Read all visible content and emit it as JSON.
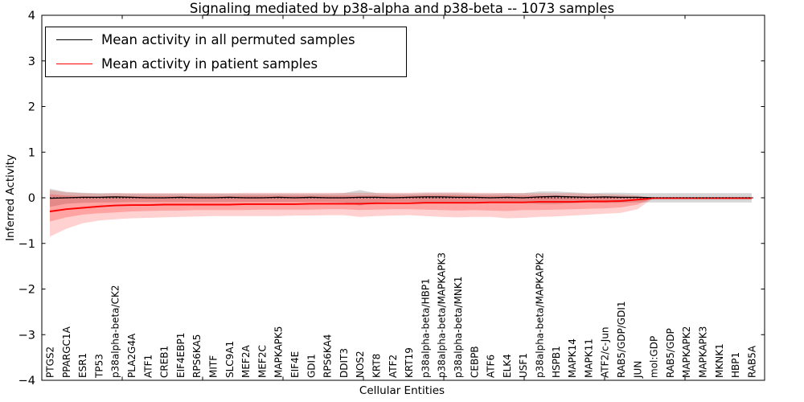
{
  "title": "Signaling mediated by p38-alpha and p38-beta -- 1073 samples",
  "axes": {
    "ylabel": "Inferred Activity",
    "xlabel": "Cellular Entities",
    "yticks": [
      4,
      3,
      2,
      1,
      0,
      -1,
      -2,
      -3,
      -4
    ],
    "ylim": [
      -4,
      4
    ]
  },
  "legend": {
    "entries": [
      {
        "label": "Mean activity in all permuted samples",
        "color": "#000000"
      },
      {
        "label": "Mean activity in patient samples",
        "color": "#ff0000"
      }
    ]
  },
  "chart_data": {
    "type": "line",
    "title": "Signaling mediated by p38-alpha and p38-beta -- 1073 samples",
    "xlabel": "Cellular Entities",
    "ylabel": "Inferred Activity",
    "ylim": [
      -4,
      4
    ],
    "grid": false,
    "legend_position": "upper left",
    "zero_reference_line": true,
    "categories": [
      "PTGS2",
      "PPARGC1A",
      "ESR1",
      "TP53",
      "p38alpha-beta/CK2",
      "PLA2G4A",
      "ATF1",
      "CREB1",
      "EIF4EBP1",
      "RPS6KA5",
      "MITF",
      "SLC9A1",
      "MEF2A",
      "MEF2C",
      "MAPKAPK5",
      "EIF4E",
      "GDI1",
      "RPS6KA4",
      "DDIT3",
      "NOS2",
      "KRT8",
      "ATF2",
      "KRT19",
      "p38alpha-beta/HBP1",
      "p38alpha-beta/MAPKAPK3",
      "p38alpha-beta/MNK1",
      "CEBPB",
      "ATF6",
      "ELK4",
      "USF1",
      "p38alpha-beta/MAPKAPK2",
      "HSPB1",
      "MAPK14",
      "MAPK11",
      "ATF2/c-Jun",
      "RAB5/GDP/GDI1",
      "JUN",
      "mol:GDP",
      "RAB5/GDP",
      "MAPKAPK2",
      "MAPKAPK3",
      "MKNK1",
      "HBP1",
      "RAB5A"
    ],
    "series": [
      {
        "name": "Mean activity in all permuted samples",
        "color": "#000000",
        "values": [
          -0.01,
          0.0,
          0.01,
          0.01,
          0.02,
          0.01,
          0.0,
          0.0,
          0.01,
          0.0,
          0.0,
          0.01,
          0.0,
          0.0,
          0.01,
          0.0,
          0.01,
          0.0,
          0.0,
          0.01,
          0.01,
          0.0,
          0.01,
          0.02,
          0.02,
          0.01,
          0.01,
          0.0,
          0.01,
          0.0,
          0.02,
          0.03,
          0.02,
          0.01,
          0.02,
          0.01,
          0.01,
          0.0,
          0.0,
          0.0,
          0.0,
          0.0,
          0.0,
          0.0
        ]
      },
      {
        "name": "Mean activity in patient samples",
        "color": "#ff0000",
        "values": [
          -0.3,
          -0.25,
          -0.22,
          -0.19,
          -0.17,
          -0.16,
          -0.16,
          -0.15,
          -0.15,
          -0.15,
          -0.15,
          -0.15,
          -0.14,
          -0.14,
          -0.14,
          -0.14,
          -0.13,
          -0.13,
          -0.13,
          -0.13,
          -0.12,
          -0.12,
          -0.12,
          -0.11,
          -0.11,
          -0.11,
          -0.11,
          -0.1,
          -0.1,
          -0.1,
          -0.09,
          -0.09,
          -0.09,
          -0.08,
          -0.08,
          -0.07,
          -0.04,
          -0.01,
          -0.01,
          -0.01,
          -0.01,
          -0.01,
          -0.01,
          -0.01
        ]
      }
    ],
    "bands": [
      {
        "name": "permuted-samples-band",
        "color": "#999999",
        "alpha": 0.4,
        "upper": [
          0.2,
          0.13,
          0.11,
          0.1,
          0.1,
          0.09,
          0.09,
          0.09,
          0.09,
          0.09,
          0.09,
          0.09,
          0.09,
          0.09,
          0.09,
          0.09,
          0.09,
          0.09,
          0.1,
          0.17,
          0.1,
          0.09,
          0.09,
          0.1,
          0.1,
          0.1,
          0.09,
          0.09,
          0.1,
          0.1,
          0.14,
          0.14,
          0.12,
          0.1,
          0.11,
          0.11,
          0.1,
          0.1,
          0.1,
          0.1,
          0.1,
          0.1,
          0.1,
          0.1
        ],
        "lower": [
          -0.2,
          -0.13,
          -0.11,
          -0.1,
          -0.1,
          -0.09,
          -0.09,
          -0.09,
          -0.09,
          -0.09,
          -0.09,
          -0.09,
          -0.09,
          -0.09,
          -0.09,
          -0.09,
          -0.09,
          -0.09,
          -0.1,
          -0.17,
          -0.1,
          -0.09,
          -0.09,
          -0.1,
          -0.1,
          -0.1,
          -0.09,
          -0.09,
          -0.1,
          -0.1,
          -0.14,
          -0.14,
          -0.12,
          -0.1,
          -0.11,
          -0.11,
          -0.1,
          -0.1,
          -0.1,
          -0.1,
          -0.1,
          -0.1,
          -0.1,
          -0.1
        ]
      },
      {
        "name": "patient-samples-band-outer",
        "color": "#ff0000",
        "alpha": 0.18,
        "upper": [
          0.17,
          0.12,
          0.1,
          0.09,
          0.1,
          0.1,
          0.1,
          0.1,
          0.1,
          0.1,
          0.1,
          0.1,
          0.11,
          0.11,
          0.11,
          0.11,
          0.11,
          0.11,
          0.11,
          0.11,
          0.11,
          0.11,
          0.11,
          0.12,
          0.12,
          0.12,
          0.11,
          0.11,
          0.1,
          0.1,
          0.1,
          0.1,
          0.1,
          0.09,
          0.08,
          0.07,
          0.05,
          0.0,
          0.0,
          0.0,
          0.0,
          0.0,
          0.0,
          0.0
        ],
        "lower": [
          -0.85,
          -0.68,
          -0.56,
          -0.5,
          -0.47,
          -0.45,
          -0.44,
          -0.43,
          -0.42,
          -0.41,
          -0.4,
          -0.4,
          -0.4,
          -0.4,
          -0.4,
          -0.39,
          -0.39,
          -0.38,
          -0.38,
          -0.42,
          -0.4,
          -0.39,
          -0.38,
          -0.4,
          -0.42,
          -0.43,
          -0.42,
          -0.42,
          -0.45,
          -0.44,
          -0.42,
          -0.41,
          -0.39,
          -0.37,
          -0.35,
          -0.33,
          -0.25,
          0.0,
          0.0,
          0.0,
          0.0,
          0.0,
          0.0,
          0.0
        ]
      },
      {
        "name": "patient-samples-band-inner",
        "color": "#ff0000",
        "alpha": 0.22,
        "upper": [
          0.08,
          0.05,
          0.04,
          0.03,
          0.04,
          0.04,
          0.04,
          0.04,
          0.04,
          0.04,
          0.04,
          0.04,
          0.05,
          0.05,
          0.05,
          0.05,
          0.05,
          0.05,
          0.05,
          0.05,
          0.05,
          0.05,
          0.05,
          0.06,
          0.06,
          0.06,
          0.05,
          0.05,
          0.05,
          0.05,
          0.05,
          0.05,
          0.04,
          0.04,
          0.03,
          0.03,
          0.02,
          0.0,
          0.0,
          0.0,
          0.0,
          0.0,
          0.0,
          0.0
        ],
        "lower": [
          -0.52,
          -0.43,
          -0.37,
          -0.34,
          -0.32,
          -0.3,
          -0.29,
          -0.28,
          -0.28,
          -0.27,
          -0.27,
          -0.27,
          -0.27,
          -0.26,
          -0.26,
          -0.26,
          -0.26,
          -0.25,
          -0.25,
          -0.27,
          -0.26,
          -0.25,
          -0.25,
          -0.26,
          -0.27,
          -0.28,
          -0.27,
          -0.28,
          -0.29,
          -0.27,
          -0.27,
          -0.26,
          -0.25,
          -0.24,
          -0.23,
          -0.21,
          -0.15,
          0.0,
          0.0,
          0.0,
          0.0,
          0.0,
          0.0,
          0.0
        ]
      }
    ]
  }
}
